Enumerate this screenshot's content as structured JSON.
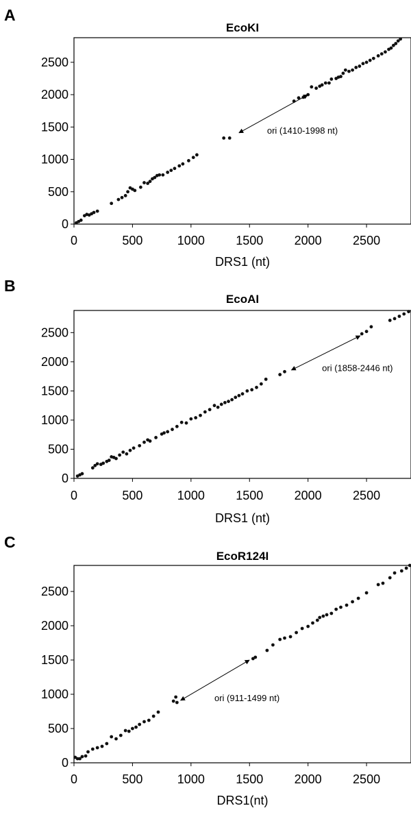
{
  "chart_data": [
    {
      "panel": "A",
      "type": "scatter",
      "title": "EcoKI",
      "xlabel": "DRS1 (nt)",
      "ylabel": "",
      "xlim": [
        0,
        2880
      ],
      "ylim": [
        0,
        2880
      ],
      "xticks": [
        0,
        500,
        1000,
        1500,
        2000,
        2500
      ],
      "yticks": [
        0,
        500,
        1000,
        1500,
        2000,
        2500
      ],
      "grid": false,
      "annotation": {
        "text": "ori (1410-1998 nt)",
        "arrow_from": [
          1410,
          1410
        ],
        "arrow_to": [
          1998,
          1998
        ],
        "text_at": [
          1650,
          1400
        ]
      },
      "x": [
        20,
        40,
        60,
        90,
        110,
        130,
        150,
        170,
        200,
        320,
        380,
        410,
        440,
        460,
        480,
        500,
        520,
        570,
        600,
        630,
        650,
        670,
        690,
        710,
        730,
        760,
        800,
        830,
        860,
        900,
        930,
        980,
        1020,
        1050,
        1280,
        1330,
        1880,
        1920,
        1960,
        2000,
        2030,
        2070,
        2100,
        2120,
        2150,
        2180,
        2200,
        2240,
        2260,
        2280,
        2300,
        2320,
        2350,
        2380,
        2410,
        2440,
        2470,
        2500,
        2530,
        2560,
        2600,
        2630,
        2660,
        2690,
        2710,
        2730,
        2750,
        2770,
        2790
      ],
      "y": [
        20,
        40,
        60,
        130,
        150,
        140,
        160,
        180,
        200,
        320,
        380,
        410,
        440,
        500,
        560,
        540,
        520,
        570,
        640,
        630,
        660,
        700,
        720,
        750,
        760,
        760,
        800,
        830,
        860,
        900,
        930,
        980,
        1030,
        1070,
        1330,
        1330,
        1900,
        1950,
        1960,
        2000,
        2120,
        2100,
        2130,
        2150,
        2180,
        2180,
        2240,
        2250,
        2270,
        2280,
        2330,
        2380,
        2360,
        2380,
        2420,
        2440,
        2480,
        2500,
        2530,
        2560,
        2600,
        2630,
        2660,
        2700,
        2720,
        2760,
        2790,
        2830,
        2860
      ]
    },
    {
      "panel": "B",
      "type": "scatter",
      "title": "EcoAI",
      "xlabel": "DRS1 (nt)",
      "ylabel": "",
      "xlim": [
        0,
        2880
      ],
      "ylim": [
        0,
        2880
      ],
      "xticks": [
        0,
        500,
        1000,
        1500,
        2000,
        2500
      ],
      "yticks": [
        0,
        500,
        1000,
        1500,
        2000,
        2500
      ],
      "grid": false,
      "annotation": {
        "text": "ori (1858-2446 nt)",
        "arrow_from": [
          1858,
          1858
        ],
        "arrow_to": [
          2446,
          2446
        ],
        "text_at": [
          2120,
          1840
        ]
      },
      "x": [
        30,
        50,
        70,
        160,
        180,
        200,
        230,
        250,
        280,
        300,
        320,
        340,
        360,
        390,
        420,
        450,
        480,
        510,
        560,
        600,
        630,
        650,
        700,
        750,
        770,
        800,
        840,
        880,
        920,
        960,
        1000,
        1040,
        1080,
        1120,
        1160,
        1200,
        1230,
        1260,
        1290,
        1320,
        1350,
        1380,
        1410,
        1440,
        1480,
        1520,
        1560,
        1600,
        1640,
        1760,
        1800,
        2460,
        2500,
        2540,
        2700,
        2740,
        2780,
        2820,
        2860
      ],
      "y": [
        40,
        60,
        80,
        180,
        220,
        250,
        240,
        260,
        290,
        310,
        370,
        360,
        340,
        400,
        450,
        420,
        480,
        520,
        560,
        620,
        660,
        640,
        700,
        760,
        780,
        800,
        840,
        890,
        960,
        950,
        1020,
        1040,
        1080,
        1140,
        1180,
        1250,
        1220,
        1270,
        1300,
        1320,
        1350,
        1390,
        1420,
        1450,
        1500,
        1520,
        1560,
        1620,
        1700,
        1780,
        1830,
        2480,
        2520,
        2600,
        2710,
        2740,
        2780,
        2820,
        2860
      ]
    },
    {
      "panel": "C",
      "type": "scatter",
      "title": "EcoR124I",
      "xlabel": "DRS1(nt)",
      "ylabel": "",
      "xlim": [
        0,
        2880
      ],
      "ylim": [
        0,
        2880
      ],
      "xticks": [
        0,
        500,
        1000,
        1500,
        2000,
        2500
      ],
      "yticks": [
        0,
        500,
        1000,
        1500,
        2000,
        2500
      ],
      "grid": false,
      "annotation": {
        "text": "ori (911-1499 nt)",
        "arrow_from": [
          911,
          911
        ],
        "arrow_to": [
          1499,
          1499
        ],
        "text_at": [
          1200,
          900
        ]
      },
      "x": [
        10,
        30,
        50,
        70,
        100,
        120,
        160,
        200,
        240,
        280,
        320,
        360,
        400,
        440,
        470,
        500,
        530,
        560,
        600,
        640,
        680,
        720,
        850,
        870,
        880,
        1530,
        1550,
        1650,
        1700,
        1760,
        1800,
        1850,
        1900,
        1950,
        2000,
        2040,
        2080,
        2100,
        2130,
        2160,
        2200,
        2240,
        2280,
        2330,
        2380,
        2430,
        2500,
        2600,
        2640,
        2700,
        2740,
        2800,
        2840,
        2870
      ],
      "y": [
        80,
        60,
        60,
        90,
        100,
        160,
        200,
        220,
        240,
        280,
        380,
        350,
        400,
        470,
        460,
        500,
        520,
        560,
        600,
        620,
        680,
        740,
        900,
        960,
        880,
        1520,
        1540,
        1640,
        1720,
        1800,
        1820,
        1840,
        1900,
        1960,
        1990,
        2040,
        2080,
        2120,
        2140,
        2160,
        2180,
        2240,
        2270,
        2300,
        2350,
        2400,
        2480,
        2600,
        2620,
        2700,
        2770,
        2800,
        2840,
        2880
      ]
    }
  ]
}
